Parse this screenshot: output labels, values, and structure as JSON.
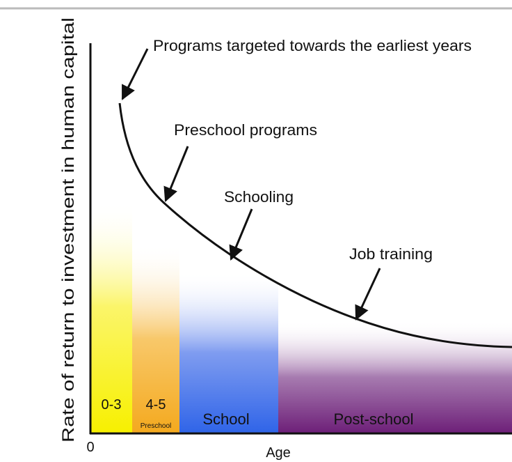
{
  "diagram": {
    "y_axis_label": "Rate of return to investment in human capital",
    "x_axis_label": "Age",
    "x_origin_label": "0",
    "annotations": [
      "Programs targeted towards the earliest years",
      "Preschool programs",
      "Schooling",
      "Job training"
    ],
    "stages": [
      {
        "label": "0-3"
      },
      {
        "label": "4-5",
        "sublabel": "Preschool"
      },
      {
        "label": "School"
      },
      {
        "label": "Post-school"
      }
    ]
  }
}
